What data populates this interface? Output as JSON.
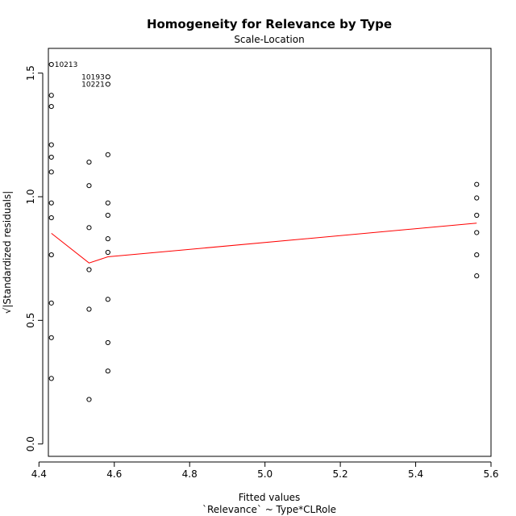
{
  "chart_data": {
    "type": "scatter",
    "title": "Homogeneity for Relevance by Type",
    "subtitle": "Scale-Location",
    "xlabel": "Fitted values",
    "xlabel_sub": "`Relevance` ~ Type*CLRole",
    "ylabel": "√|Standardized residuals|",
    "xlim": [
      4.425,
      5.6
    ],
    "ylim": [
      -0.05,
      1.6
    ],
    "x_ticks": [
      4.4,
      4.6,
      4.8,
      5.0,
      5.2,
      5.4,
      5.6
    ],
    "x_tick_labels": [
      "4.4",
      "4.6",
      "4.8",
      "5.0",
      "5.2",
      "5.4",
      "5.6"
    ],
    "y_ticks": [
      0.0,
      0.5,
      1.0,
      1.5
    ],
    "y_tick_labels": [
      "0.0",
      "0.5",
      "1.0",
      "1.5"
    ],
    "grid": false,
    "colors": {
      "points": "#000000",
      "smooth_line": "#ff0000",
      "axes": "#000000"
    },
    "series": [
      {
        "points": [
          {
            "x": 4.433,
            "y": 1.535
          },
          {
            "x": 4.433,
            "y": 1.41
          },
          {
            "x": 4.433,
            "y": 1.365
          },
          {
            "x": 4.433,
            "y": 1.21
          },
          {
            "x": 4.433,
            "y": 1.16
          },
          {
            "x": 4.433,
            "y": 1.1
          },
          {
            "x": 4.433,
            "y": 0.975
          },
          {
            "x": 4.433,
            "y": 0.915
          },
          {
            "x": 4.433,
            "y": 0.765
          },
          {
            "x": 4.433,
            "y": 0.57
          },
          {
            "x": 4.433,
            "y": 0.43
          },
          {
            "x": 4.433,
            "y": 0.265
          },
          {
            "x": 4.533,
            "y": 1.14
          },
          {
            "x": 4.533,
            "y": 1.045
          },
          {
            "x": 4.533,
            "y": 0.875
          },
          {
            "x": 4.533,
            "y": 0.705
          },
          {
            "x": 4.533,
            "y": 0.545
          },
          {
            "x": 4.533,
            "y": 0.18
          },
          {
            "x": 4.583,
            "y": 1.485
          },
          {
            "x": 4.583,
            "y": 1.455
          },
          {
            "x": 4.583,
            "y": 1.17
          },
          {
            "x": 4.583,
            "y": 0.975
          },
          {
            "x": 4.583,
            "y": 0.925
          },
          {
            "x": 4.583,
            "y": 0.83
          },
          {
            "x": 4.583,
            "y": 0.775
          },
          {
            "x": 4.583,
            "y": 0.585
          },
          {
            "x": 4.583,
            "y": 0.41
          },
          {
            "x": 4.583,
            "y": 0.295
          },
          {
            "x": 5.562,
            "y": 1.05
          },
          {
            "x": 5.562,
            "y": 0.995
          },
          {
            "x": 5.562,
            "y": 0.925
          },
          {
            "x": 5.562,
            "y": 0.855
          },
          {
            "x": 5.562,
            "y": 0.765
          },
          {
            "x": 5.562,
            "y": 0.68
          }
        ]
      }
    ],
    "smooth_line": [
      {
        "x": 4.433,
        "y": 0.852
      },
      {
        "x": 4.533,
        "y": 0.732
      },
      {
        "x": 4.583,
        "y": 0.757
      },
      {
        "x": 5.562,
        "y": 0.893
      }
    ],
    "annotations": [
      {
        "text": "10213",
        "x": 4.433,
        "y": 1.535,
        "side": "right"
      },
      {
        "text": "10193",
        "x": 4.583,
        "y": 1.485,
        "side": "left"
      },
      {
        "text": "10221",
        "x": 4.583,
        "y": 1.455,
        "side": "left"
      }
    ]
  }
}
